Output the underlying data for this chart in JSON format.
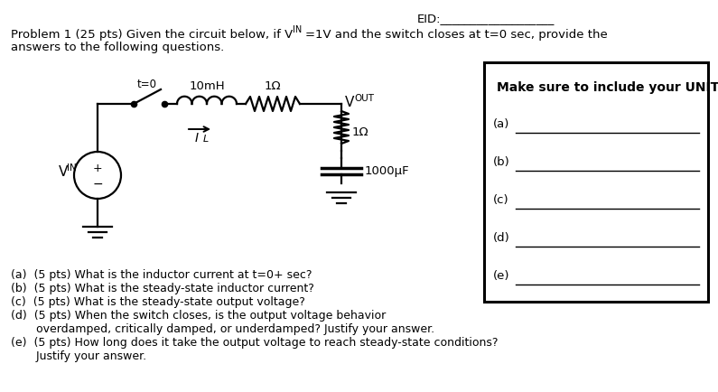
{
  "background_color": "#ffffff",
  "eid_label": "EID:___________________",
  "problem_line1a": "Problem 1 (25 pts) Given the circuit below, if V",
  "problem_line1_sub": "IN",
  "problem_line1b": "=1V and the switch closes at t=0 sec, provide the",
  "problem_line2": "answers to the following questions.",
  "box_title": "Make sure to include your UNITS!",
  "answer_labels": [
    "(a)",
    "(b)",
    "(c)",
    "(d)",
    "(e)"
  ],
  "q_lines": [
    "(a)  (5 pts) What is the inductor current at t=0+ sec?",
    "(b)  (5 pts) What is the steady-state inductor current?",
    "(c)  (5 pts) What is the steady-state output voltage?",
    "(d)  (5 pts) When the switch closes, is the output voltage behavior",
    "       overdamped, critically damped, or underdamped? Justify your answer.",
    "(e)  (5 pts) How long does it take the output voltage to reach steady-state conditions?",
    "       Justify your answer."
  ],
  "font_size": 9.5,
  "lw": 1.6
}
